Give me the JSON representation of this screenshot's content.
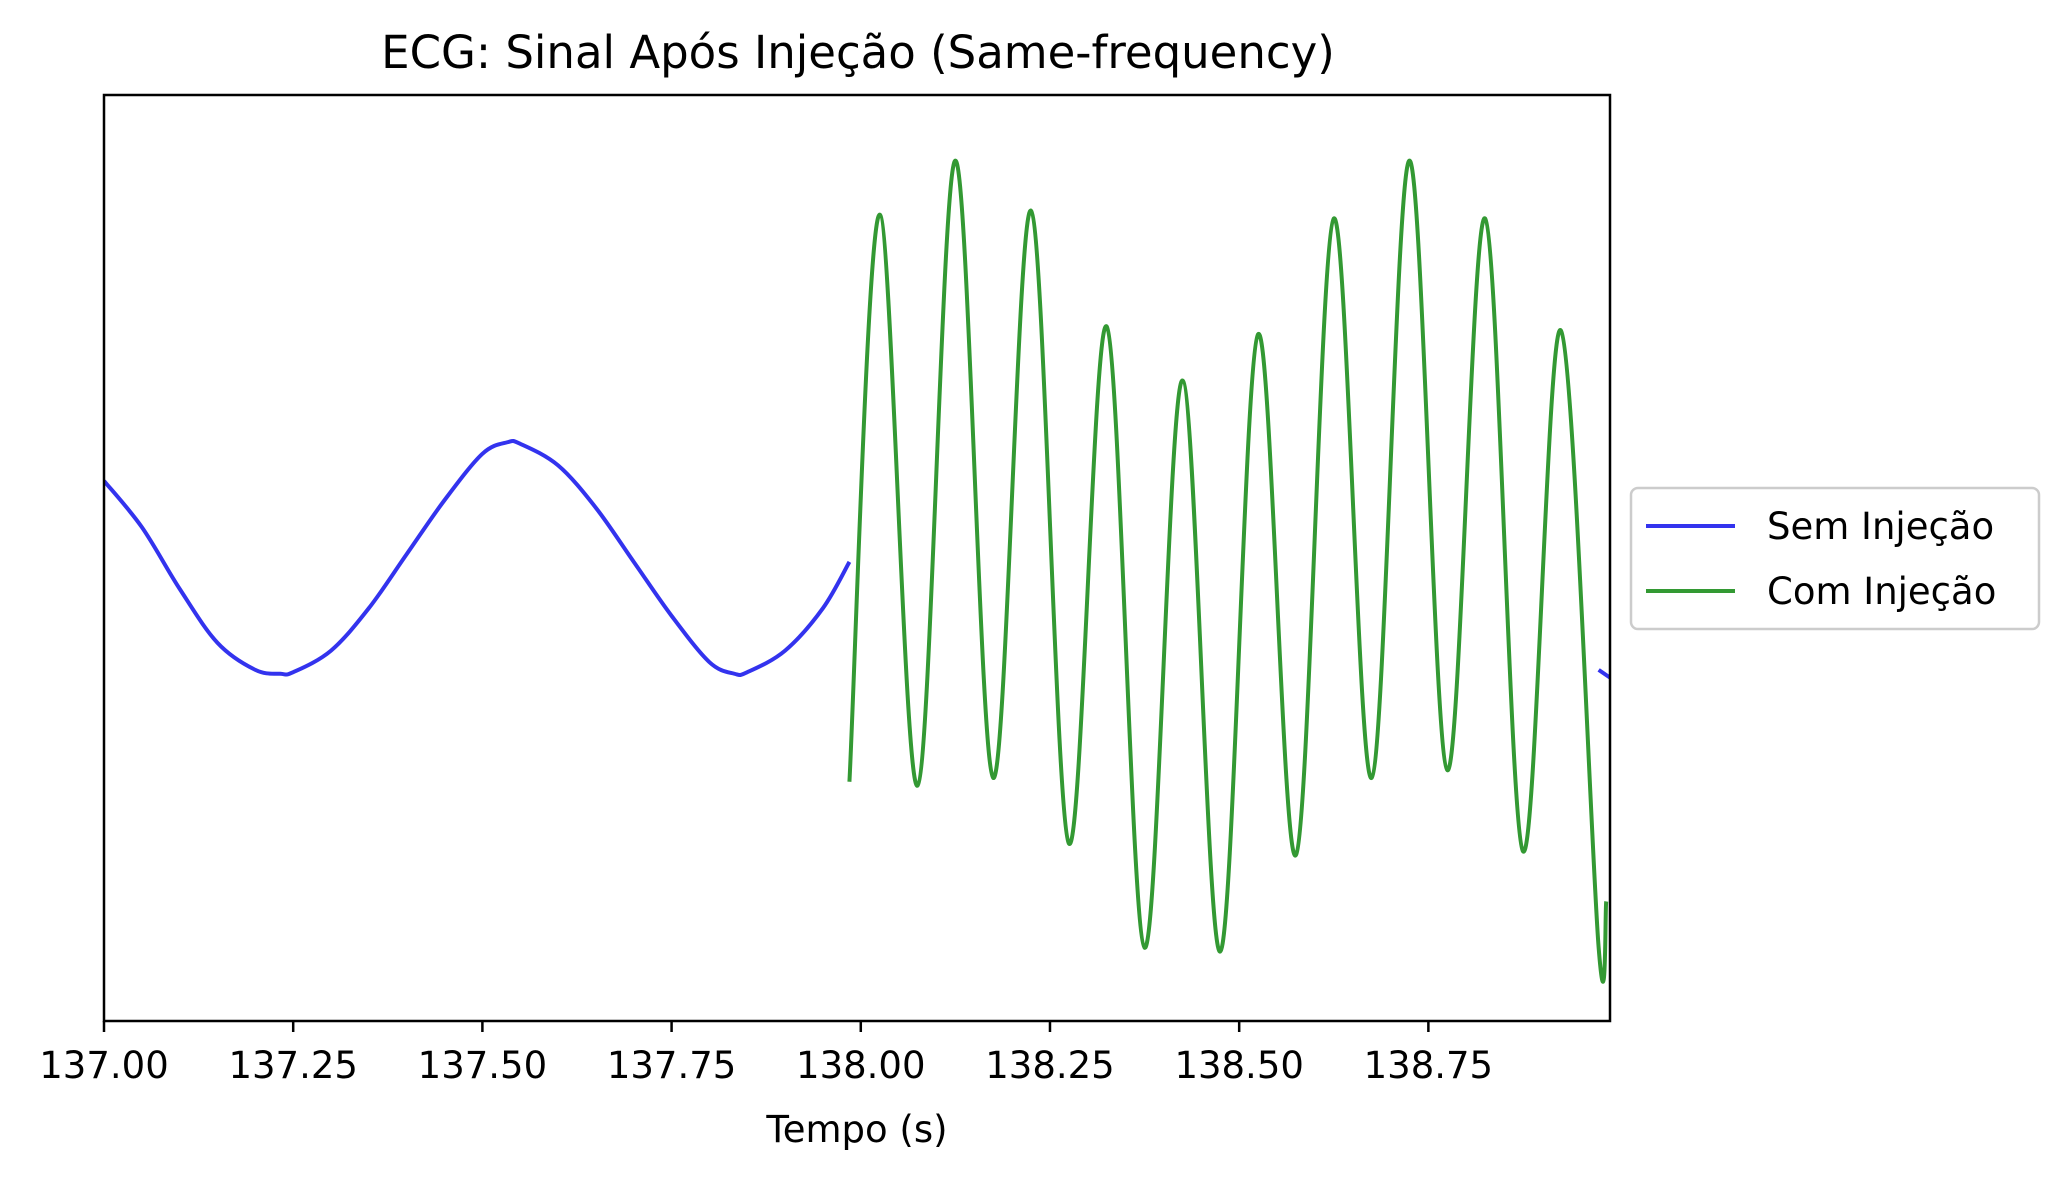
{
  "chart_data": {
    "type": "line",
    "title": "ECG: Sinal Após Injeção (Same-frequency)",
    "xlabel": "Tempo (s)",
    "ylabel": "",
    "xlim": [
      137.0,
      138.99
    ],
    "ylim": [
      -1.2,
      1.2
    ],
    "x_ticks": [
      137.0,
      137.25,
      137.5,
      137.75,
      138.0,
      138.25,
      138.5,
      138.75
    ],
    "x_tick_labels": [
      "137.00",
      "137.25",
      "137.50",
      "137.75",
      "138.00",
      "138.25",
      "138.50",
      "138.75"
    ],
    "y_ticks_visible": false,
    "grid": false,
    "legend_position": "center-right-outside",
    "series": [
      {
        "name": "Sem Injeção",
        "color": "#3333ee",
        "segments": [
          {
            "x": [
              137.0,
              137.05,
              137.1,
              137.15,
              137.2,
              137.233,
              137.25,
              137.3,
              137.35,
              137.4,
              137.45,
              137.5,
              137.533,
              137.55,
              137.6,
              137.65,
              137.7,
              137.75,
              137.8,
              137.833,
              137.85,
              137.9,
              137.95,
              137.985
            ],
            "y": [
              0.2,
              0.08,
              -0.08,
              -0.22,
              -0.29,
              -0.3,
              -0.296,
              -0.24,
              -0.13,
              0.01,
              0.15,
              0.27,
              0.3,
              0.296,
              0.24,
              0.13,
              -0.01,
              -0.15,
              -0.27,
              -0.3,
              -0.296,
              -0.24,
              -0.13,
              -0.01
            ]
          },
          {
            "x": [
              138.975,
              138.99
            ],
            "y": [
              -0.29,
              -0.31
            ]
          }
        ]
      },
      {
        "name": "Com Injeção",
        "color": "#339933",
        "segments": [
          {
            "x": [
              137.985,
              138.025,
              138.075,
              138.125,
              138.175,
              138.225,
              138.275,
              138.325,
              138.375,
              138.425,
              138.475,
              138.525,
              138.575,
              138.625,
              138.675,
              138.725,
              138.775,
              138.825,
              138.875,
              138.925,
              138.975,
              138.985
            ],
            "y": [
              -0.58,
              0.89,
              -0.59,
              1.03,
              -0.57,
              0.9,
              -0.74,
              0.6,
              -1.01,
              0.46,
              -1.02,
              0.58,
              -0.77,
              0.88,
              -0.57,
              1.03,
              -0.55,
              0.88,
              -0.76,
              0.59,
              -1.01,
              -0.89
            ]
          }
        ]
      }
    ]
  }
}
